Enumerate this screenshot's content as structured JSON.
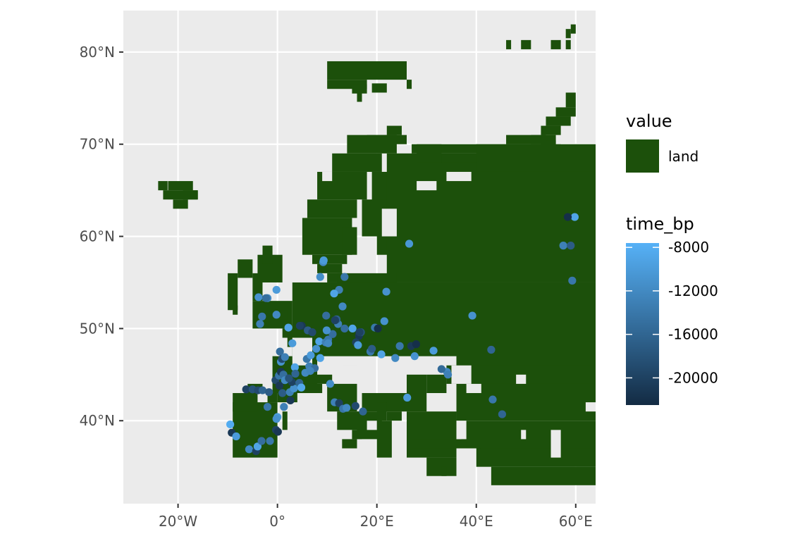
{
  "map": {
    "lon_range": [
      -31,
      64
    ],
    "lat_range": [
      31,
      84.5
    ],
    "background_color": "#ebebeb",
    "grid_color": "#ffffff",
    "land_color": "#1c500b",
    "x_ticks": [
      {
        "lon": -20,
        "label": "20°W"
      },
      {
        "lon": 0,
        "label": "0°"
      },
      {
        "lon": 20,
        "label": "20°E"
      },
      {
        "lon": 40,
        "label": "40°E"
      },
      {
        "lon": 60,
        "label": "60°E"
      }
    ],
    "y_ticks": [
      {
        "lat": 40,
        "label": "40°N"
      },
      {
        "lat": 50,
        "label": "50°N"
      },
      {
        "lat": 60,
        "label": "60°N"
      },
      {
        "lat": 70,
        "label": "70°N"
      },
      {
        "lat": 80,
        "label": "80°N"
      }
    ]
  },
  "legend": {
    "fill_title": "value",
    "fill_entries": [
      {
        "label": "land",
        "color": "#1c500b"
      }
    ],
    "color_title": "time_bp",
    "color_range": [
      -22500,
      -7600
    ],
    "color_low": "#132b43",
    "color_high": "#56b1f7",
    "color_ticks": [
      {
        "value": -8000,
        "label": "-8000"
      },
      {
        "value": -12000,
        "label": "-12000"
      },
      {
        "value": -16000,
        "label": "-16000"
      },
      {
        "value": -20000,
        "label": "-20000"
      }
    ]
  },
  "land_rects": [
    [
      -24,
      65,
      1.9,
      1
    ],
    [
      -23,
      64,
      6.9,
      1
    ],
    [
      -22,
      65,
      5,
      1
    ],
    [
      -21,
      63,
      3,
      1
    ],
    [
      -19,
      64,
      3,
      1
    ],
    [
      10,
      77,
      16,
      2
    ],
    [
      10,
      76,
      8,
      1
    ],
    [
      15,
      75.5,
      3,
      1
    ],
    [
      16,
      74.6,
      1,
      1
    ],
    [
      19,
      75.6,
      3,
      1
    ],
    [
      26,
      76,
      1,
      1
    ],
    [
      46,
      80.3,
      1,
      1
    ],
    [
      49,
      80.3,
      2,
      1
    ],
    [
      55,
      80.3,
      2,
      1
    ],
    [
      58,
      80.3,
      1,
      1
    ],
    [
      58,
      81.5,
      1,
      1
    ],
    [
      59,
      82,
      1,
      1
    ],
    [
      58,
      74,
      2,
      1.6
    ],
    [
      56,
      73,
      4,
      1
    ],
    [
      54,
      72,
      5,
      1
    ],
    [
      53,
      71,
      4,
      1
    ],
    [
      51,
      70,
      5,
      1
    ],
    [
      53,
      69.4,
      3,
      1
    ],
    [
      59,
      68.7,
      1,
      1
    ],
    [
      -10,
      52,
      2,
      4
    ],
    [
      -9,
      51.5,
      1,
      1
    ],
    [
      -5,
      50,
      8,
      3
    ],
    [
      -5,
      53,
      2,
      3
    ],
    [
      -4,
      55,
      5,
      3
    ],
    [
      -3,
      57,
      2,
      2
    ],
    [
      0,
      51,
      2,
      1
    ],
    [
      -8,
      55.5,
      3,
      2
    ],
    [
      5,
      58,
      10,
      4
    ],
    [
      6,
      62,
      10,
      2
    ],
    [
      8,
      64,
      10,
      3
    ],
    [
      11,
      67,
      10,
      2
    ],
    [
      14,
      69,
      10,
      2
    ],
    [
      18,
      70,
      8,
      1
    ],
    [
      22,
      71,
      3,
      1
    ],
    [
      7,
      57,
      7,
      1
    ],
    [
      8,
      56,
      5,
      1
    ],
    [
      10,
      55,
      3,
      1
    ],
    [
      13,
      58,
      3,
      3
    ],
    [
      19,
      62,
      8,
      5
    ],
    [
      17,
      60,
      10,
      4
    ],
    [
      20,
      58,
      10,
      4
    ],
    [
      21,
      61,
      7,
      2
    ],
    [
      22,
      55,
      42,
      14
    ],
    [
      27,
      69,
      30,
      1
    ],
    [
      28,
      68,
      5,
      2
    ],
    [
      33,
      68,
      9,
      1
    ],
    [
      40,
      67,
      24,
      3
    ],
    [
      46,
      70,
      8,
      1
    ],
    [
      12,
      54,
      12,
      2
    ],
    [
      10,
      53,
      12,
      1
    ],
    [
      3,
      47,
      61,
      8
    ],
    [
      2,
      48,
      3,
      2
    ],
    [
      1,
      49,
      3,
      1
    ],
    [
      -1,
      43,
      9,
      4
    ],
    [
      0,
      42,
      4,
      1
    ],
    [
      -9,
      36,
      9,
      6
    ],
    [
      -9,
      41,
      5,
      2
    ],
    [
      -6,
      43,
      3,
      1
    ],
    [
      -2,
      42,
      2,
      1
    ],
    [
      1,
      39,
      1,
      2
    ],
    [
      4,
      43,
      5,
      1
    ],
    [
      7,
      44,
      4,
      1
    ],
    [
      10,
      41,
      6,
      3
    ],
    [
      12,
      39,
      5,
      2
    ],
    [
      15,
      38,
      2,
      1
    ],
    [
      13,
      37,
      3,
      1
    ],
    [
      16,
      38,
      5,
      3
    ],
    [
      17,
      41,
      9,
      2
    ],
    [
      20,
      40,
      2,
      2
    ],
    [
      20,
      36,
      3,
      4
    ],
    [
      22,
      40,
      3,
      1
    ],
    [
      26,
      36,
      10,
      5
    ],
    [
      36,
      40,
      28,
      8
    ],
    [
      34,
      44,
      30,
      2
    ],
    [
      36,
      46,
      28,
      1
    ],
    [
      27,
      37,
      14,
      1
    ],
    [
      38,
      37,
      26,
      3
    ],
    [
      40,
      35,
      24,
      2
    ],
    [
      43,
      33,
      21,
      2
    ],
    [
      30,
      34,
      6,
      2
    ],
    [
      33,
      34,
      1,
      1
    ],
    [
      26,
      41,
      4,
      4
    ],
    [
      30,
      43,
      4,
      2
    ]
  ],
  "sea_holes": [
    [
      3,
      46,
      4,
      3
    ],
    [
      35,
      44,
      4,
      2
    ],
    [
      38,
      43,
      3,
      1
    ],
    [
      21,
      60,
      3,
      3
    ],
    [
      28,
      65,
      4,
      1
    ],
    [
      34,
      66,
      5,
      1
    ],
    [
      9,
      66,
      2,
      1
    ],
    [
      13,
      45,
      3,
      1
    ],
    [
      18,
      39,
      2,
      1
    ],
    [
      48,
      44,
      2,
      1
    ],
    [
      49,
      38,
      1,
      1
    ],
    [
      55,
      36,
      2,
      3
    ],
    [
      62,
      41,
      2,
      1
    ],
    [
      36,
      38,
      1,
      1
    ]
  ],
  "sites": [
    [
      -9.5,
      39.6,
      -8200
    ],
    [
      -9.2,
      38.7,
      -21000
    ],
    [
      -8.3,
      38.3,
      -10000
    ],
    [
      -5.7,
      36.9,
      -12000
    ],
    [
      -4.3,
      36.7,
      -20000
    ],
    [
      -4,
      37.2,
      -9000
    ],
    [
      -3.2,
      37.8,
      -15000
    ],
    [
      -6.3,
      43.4,
      -20000
    ],
    [
      -5,
      43.4,
      -18000
    ],
    [
      -3.9,
      43.3,
      -19000
    ],
    [
      -3,
      43.3,
      -16000
    ],
    [
      -1.7,
      43.1,
      -17000
    ],
    [
      -2,
      41.5,
      -14000
    ],
    [
      -0.4,
      44.4,
      -19000
    ],
    [
      0.3,
      44.9,
      -14000
    ],
    [
      0.7,
      45.3,
      -21000
    ],
    [
      1.2,
      45,
      -15000
    ],
    [
      1.5,
      44.4,
      -12000
    ],
    [
      1,
      43,
      -17000
    ],
    [
      2.5,
      43.1,
      -13000
    ],
    [
      3.3,
      43.5,
      -11000
    ],
    [
      2.9,
      44.2,
      -20000
    ],
    [
      0,
      40.4,
      -10000
    ],
    [
      -0.3,
      39,
      -20000
    ],
    [
      0.1,
      38.8,
      -21000
    ],
    [
      2.6,
      42.2,
      -21000
    ],
    [
      3.5,
      45.8,
      -9000
    ],
    [
      4.4,
      44.1,
      -16000
    ],
    [
      4.8,
      43.6,
      -8500
    ],
    [
      5.6,
      45.2,
      -12000
    ],
    [
      6.4,
      45.9,
      -13000
    ],
    [
      5.9,
      46.7,
      -14000
    ],
    [
      6.7,
      47.1,
      -10000
    ],
    [
      7.8,
      47.8,
      -11000
    ],
    [
      8.4,
      48.6,
      -9000
    ],
    [
      4.9,
      50.3,
      -21000
    ],
    [
      6.1,
      49.8,
      -17000
    ],
    [
      7,
      49.6,
      -19000
    ],
    [
      9.7,
      48.5,
      -13000
    ],
    [
      10.2,
      48.8,
      -14000
    ],
    [
      11.1,
      49.4,
      -15000
    ],
    [
      9.9,
      49.8,
      -11000
    ],
    [
      11.6,
      50.9,
      -16000
    ],
    [
      12.2,
      50.5,
      -13000
    ],
    [
      13.5,
      50,
      -15000
    ],
    [
      15.1,
      50,
      -9000
    ],
    [
      16.4,
      49.2,
      -21000
    ],
    [
      16.8,
      49.6,
      -18000
    ],
    [
      15.8,
      48.5,
      -20000
    ],
    [
      16.2,
      48.2,
      -10000
    ],
    [
      18.7,
      47.5,
      -14000
    ],
    [
      19,
      47.8,
      -17000
    ],
    [
      19.6,
      50.1,
      -14000
    ],
    [
      20.2,
      50,
      -22000
    ],
    [
      21.5,
      50.8,
      -11000
    ],
    [
      20.9,
      47.2,
      -9000
    ],
    [
      23.7,
      46.8,
      -12000
    ],
    [
      26.9,
      48.1,
      -21000
    ],
    [
      27.9,
      48.3,
      -22000
    ],
    [
      27.6,
      47,
      -11000
    ],
    [
      31.4,
      47.6,
      -10000
    ],
    [
      34.1,
      45.3,
      -12000
    ],
    [
      34.3,
      45,
      -13000
    ],
    [
      26.1,
      42.5,
      -10000
    ],
    [
      39.2,
      51.4,
      -11000
    ],
    [
      43,
      47.7,
      -16000
    ],
    [
      43.3,
      42.3,
      -14000
    ],
    [
      45.2,
      40.7,
      -16000
    ],
    [
      59.8,
      62.1,
      -9000
    ],
    [
      58.4,
      62.1,
      -22000
    ],
    [
      57.5,
      59,
      -13000
    ],
    [
      59,
      59,
      -17000
    ],
    [
      59.3,
      55.2,
      -14000
    ],
    [
      26.5,
      59.2,
      -10500
    ],
    [
      21.9,
      54,
      -11000
    ],
    [
      13.5,
      55.6,
      -14000
    ],
    [
      12.4,
      54.2,
      -13000
    ],
    [
      11.4,
      53.8,
      -9000
    ],
    [
      9.2,
      57.2,
      -12000
    ],
    [
      9.3,
      57.4,
      -10000
    ],
    [
      8.6,
      55.6,
      -11500
    ],
    [
      13.1,
      52.4,
      -12000
    ],
    [
      9.8,
      51.4,
      -15000
    ],
    [
      11.9,
      51,
      -16500
    ],
    [
      11.6,
      50.9,
      -20000
    ],
    [
      10.6,
      44,
      -11500
    ],
    [
      11.5,
      42,
      -13000
    ],
    [
      12.4,
      41.9,
      -20000
    ],
    [
      13.2,
      41.3,
      -14000
    ],
    [
      15.7,
      41.6,
      -19000
    ],
    [
      17.2,
      41,
      -16000
    ],
    [
      13.9,
      41.4,
      -12000
    ],
    [
      7.5,
      45.7,
      -15000
    ],
    [
      6.6,
      45.4,
      -12500
    ],
    [
      0.5,
      47.5,
      -15000
    ],
    [
      0.7,
      46.4,
      -11000
    ],
    [
      0.9,
      46.7,
      -19000
    ],
    [
      1.5,
      46.9,
      -13000
    ],
    [
      2.2,
      50.1,
      -9000
    ],
    [
      3,
      48.4,
      -10000
    ],
    [
      4.5,
      50.3,
      -20000
    ],
    [
      -0.2,
      51.5,
      -12000
    ],
    [
      -3.1,
      51.3,
      -14000
    ],
    [
      -3.5,
      50.5,
      -13000
    ],
    [
      -2,
      53.3,
      -12000
    ],
    [
      -3.8,
      53.4,
      -11000
    ],
    [
      -2.3,
      53.3,
      -15000
    ],
    [
      -0.2,
      54.2,
      -10000
    ],
    [
      2.3,
      44.6,
      -18000
    ],
    [
      -0.2,
      40.2,
      -11000
    ],
    [
      3.6,
      45.1,
      -16000
    ],
    [
      1.3,
      41.5,
      -13000
    ],
    [
      -1.5,
      37.8,
      -14000
    ],
    [
      0.4,
      43.8,
      -21000
    ],
    [
      8.6,
      46.8,
      -9000
    ],
    [
      10.2,
      48.4,
      -12000
    ],
    [
      16.5,
      49.6,
      -20000
    ],
    [
      24.6,
      48.1,
      -14000
    ],
    [
      33,
      45.6,
      -15500
    ]
  ]
}
